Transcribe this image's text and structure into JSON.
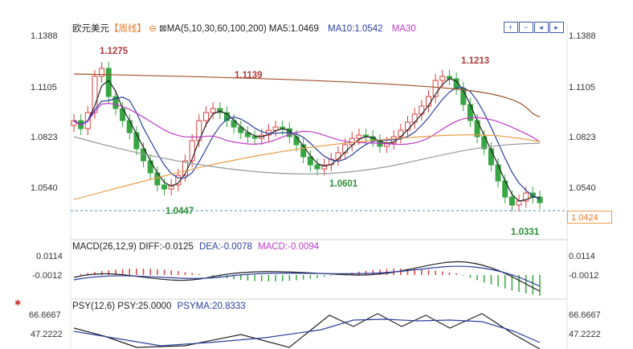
{
  "main": {
    "title": "欧元美元",
    "period": "【周线】",
    "ma_label": "MA(5,10,30,60,100,200)",
    "ma5": "MA5:1.0469",
    "ma10": "MA10:1.0542",
    "ma30": "MA30",
    "y_labels": [
      "1.1388",
      "1.1105",
      "1.0823",
      "1.0540"
    ],
    "annotations": {
      "high1": "1.1275",
      "ma_mark": "1.1139",
      "high2": "1.1213",
      "low1": "1.0447",
      "low2": "1.0601",
      "low3": "1.0331"
    },
    "current_price": "1.0424"
  },
  "macd": {
    "legend_name": "MACD(26,12,9)",
    "diff": "DIFF:-0.0125",
    "dea": "DEA:-0.0078",
    "macd": "MACD:-0.0094",
    "y_labels": [
      "0.0114",
      "-0.0012"
    ]
  },
  "psy": {
    "legend_name": "PSY(12,6)",
    "psy": "PSY:25.0000",
    "psyma": "PSYMA:20.8333",
    "y_labels": [
      "66.6667",
      "47.2222"
    ]
  },
  "colors": {
    "up": "#d94040",
    "down": "#37a542",
    "ma5": "#222222",
    "ma10": "#2b3f9e",
    "ma30": "#c03bc8",
    "ma60": "#e8a04a",
    "ma100": "#a0522d",
    "ma200": "#999999"
  }
}
